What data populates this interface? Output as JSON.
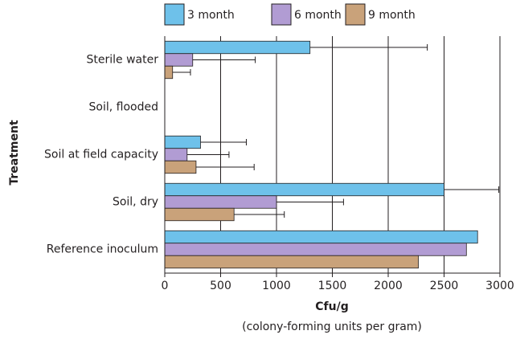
{
  "chart_data": {
    "type": "bar",
    "orientation": "horizontal",
    "categories": [
      "Sterile water",
      "Soil, flooded",
      "Soil at field capacity",
      "Soil, dry",
      "Reference inoculum"
    ],
    "series": [
      {
        "name": "3 month",
        "color": "#6ec1ea",
        "values": [
          1300,
          null,
          320,
          2500,
          2800
        ],
        "errors": [
          1050,
          null,
          410,
          490,
          null
        ]
      },
      {
        "name": "6 month",
        "color": "#b19cd3",
        "values": [
          250,
          null,
          200,
          1000,
          2700
        ],
        "errors": [
          560,
          null,
          375,
          600,
          null
        ]
      },
      {
        "name": "9 month",
        "color": "#c9a27a",
        "values": [
          70,
          null,
          280,
          620,
          2270
        ],
        "errors": [
          160,
          null,
          520,
          450,
          null
        ]
      }
    ],
    "xlabel": "Cfu/g",
    "xlabel_sub": "(colony-forming units per gram)",
    "ylabel": "Treatment",
    "xlim": [
      0,
      3000
    ],
    "xticks": [
      0,
      500,
      1000,
      1500,
      2000,
      2500,
      3000
    ],
    "grid": true,
    "legend": "top"
  }
}
